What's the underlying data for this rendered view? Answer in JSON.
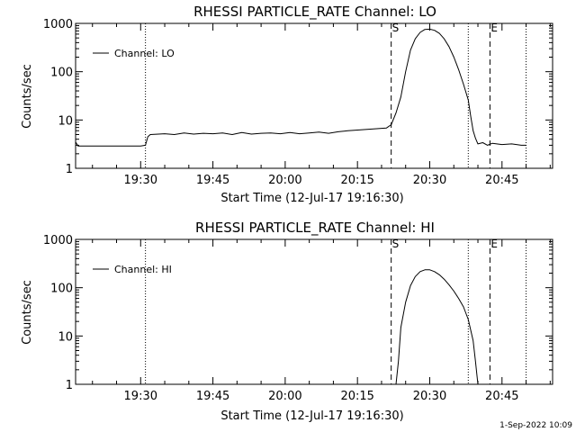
{
  "footer": {
    "timestamp": "1-Sep-2022 10:09"
  },
  "chart_data": [
    {
      "type": "line",
      "title": "RHESSI PARTICLE_RATE Channel: LO",
      "xlabel": "Start Time (12-Jul-17 19:16:30)",
      "ylabel": "Counts/sec",
      "x_scale": "time",
      "y_scale": "log",
      "xlim": [
        "19:16:30",
        "20:55:30"
      ],
      "ylim": [
        1,
        1000
      ],
      "x_ticks": [
        "19:30",
        "19:45",
        "20:00",
        "20:15",
        "20:30",
        "20:45"
      ],
      "y_ticks": [
        "1",
        "10",
        "100",
        "1000"
      ],
      "legend": {
        "position": "top-left",
        "entries": [
          "Channel: LO"
        ]
      },
      "grid": false,
      "vlines": [
        {
          "x": "19:31:00",
          "style": "dotted"
        },
        {
          "x": "20:38:00",
          "style": "dotted"
        },
        {
          "x": "20:50:00",
          "style": "dotted"
        },
        {
          "x": "20:22:00",
          "style": "dashed",
          "label": "S"
        },
        {
          "x": "20:42:30",
          "style": "dashed",
          "label": "E"
        }
      ],
      "series": [
        {
          "name": "Channel: LO",
          "x": [
            "19:16:30",
            "19:17:00",
            "19:17:30",
            "19:18:00",
            "19:30:00",
            "19:31:00",
            "19:31:30",
            "19:32:00",
            "19:35:00",
            "19:37:00",
            "19:39:00",
            "19:41:00",
            "19:43:00",
            "19:45:00",
            "19:47:00",
            "19:49:00",
            "19:51:00",
            "19:53:00",
            "19:55:00",
            "19:57:00",
            "19:59:00",
            "20:01:00",
            "20:03:00",
            "20:05:00",
            "20:07:00",
            "20:09:00",
            "20:11:00",
            "20:13:00",
            "20:15:00",
            "20:17:00",
            "20:19:00",
            "20:21:00",
            "20:22:00",
            "20:23:00",
            "20:24:00",
            "20:25:00",
            "20:26:00",
            "20:27:00",
            "20:28:00",
            "20:29:00",
            "20:30:00",
            "20:31:00",
            "20:32:00",
            "20:33:00",
            "20:34:00",
            "20:35:00",
            "20:36:00",
            "20:37:00",
            "20:38:00",
            "20:38:30",
            "20:39:00",
            "20:39:30",
            "20:40:00",
            "20:41:00",
            "20:42:00",
            "20:43:00",
            "20:45:00",
            "20:47:00",
            "20:49:00",
            "20:50:00"
          ],
          "y": [
            3.5,
            2.9,
            2.9,
            2.9,
            2.9,
            3.0,
            4.5,
            5.0,
            5.2,
            5.0,
            5.4,
            5.1,
            5.3,
            5.2,
            5.4,
            5.0,
            5.5,
            5.1,
            5.3,
            5.4,
            5.2,
            5.5,
            5.2,
            5.4,
            5.6,
            5.3,
            5.7,
            6.0,
            6.2,
            6.4,
            6.6,
            6.8,
            8,
            14,
            30,
            100,
            280,
            480,
            650,
            750,
            760,
            720,
            620,
            480,
            330,
            200,
            110,
            55,
            26,
            12,
            6,
            4.2,
            3.2,
            3.4,
            3.0,
            3.3,
            3.1,
            3.2,
            3.0,
            3.0
          ]
        }
      ]
    },
    {
      "type": "line",
      "title": "RHESSI PARTICLE_RATE Channel: HI",
      "xlabel": "Start Time (12-Jul-17 19:16:30)",
      "ylabel": "Counts/sec",
      "x_scale": "time",
      "y_scale": "log",
      "xlim": [
        "19:16:30",
        "20:55:30"
      ],
      "ylim": [
        1,
        1000
      ],
      "x_ticks": [
        "19:30",
        "19:45",
        "20:00",
        "20:15",
        "20:30",
        "20:45"
      ],
      "y_ticks": [
        "1",
        "10",
        "100",
        "1000"
      ],
      "legend": {
        "position": "top-left",
        "entries": [
          "Channel: HI"
        ]
      },
      "grid": false,
      "vlines": [
        {
          "x": "19:31:00",
          "style": "dotted"
        },
        {
          "x": "20:38:00",
          "style": "dotted"
        },
        {
          "x": "20:50:00",
          "style": "dotted"
        },
        {
          "x": "20:22:00",
          "style": "dashed",
          "label": "S"
        },
        {
          "x": "20:42:30",
          "style": "dashed",
          "label": "E"
        }
      ],
      "series": [
        {
          "name": "Channel: HI",
          "x": [
            "20:23:00",
            "20:23:30",
            "20:24:00",
            "20:25:00",
            "20:26:00",
            "20:27:00",
            "20:28:00",
            "20:29:00",
            "20:30:00",
            "20:31:00",
            "20:32:00",
            "20:33:00",
            "20:34:00",
            "20:35:00",
            "20:36:00",
            "20:37:00",
            "20:38:00",
            "20:39:00",
            "20:39:30",
            "20:40:00"
          ],
          "y": [
            1,
            3,
            15,
            50,
            110,
            170,
            215,
            235,
            235,
            215,
            185,
            150,
            115,
            85,
            60,
            40,
            22,
            8,
            3,
            1
          ]
        }
      ]
    }
  ]
}
